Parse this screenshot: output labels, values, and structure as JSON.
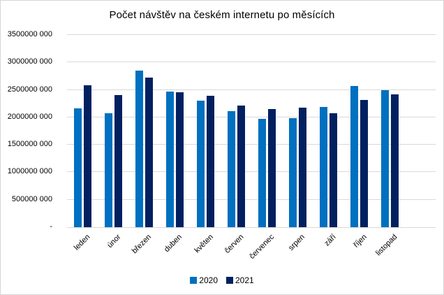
{
  "window": {
    "background": "#ffffff",
    "border_color": "#d6d6d6"
  },
  "chart_data": {
    "type": "bar",
    "title": "Počet návštěv na českém internetu po měsících",
    "categories": [
      "leden",
      "únor",
      "březen",
      "duben",
      "květen",
      "červen",
      "červenec",
      "srpen",
      "září",
      "říjen",
      "listopad"
    ],
    "series": [
      {
        "name": "2020",
        "color": "#0070C0",
        "values": [
          2160000000,
          2080000000,
          2850000000,
          2470000000,
          2300000000,
          2110000000,
          1970000000,
          1980000000,
          2190000000,
          2570000000,
          2500000000
        ]
      },
      {
        "name": "2021",
        "color": "#002060",
        "values": [
          2580000000,
          2410000000,
          2720000000,
          2450000000,
          2390000000,
          2210000000,
          2150000000,
          2170000000,
          2070000000,
          2320000000,
          2420000000
        ]
      }
    ],
    "xlabel": "",
    "ylabel": "",
    "ylim": [
      0,
      3500000000
    ],
    "ytick_step": 500000000,
    "ytick_labels": [
      "-",
      "500000 000",
      "1000000 000",
      "1500000 000",
      "2000000 000",
      "2500000 000",
      "3000000 000",
      "3500000 000"
    ],
    "grid": true,
    "gridline_color": "#d9d9d9",
    "axis_line_color": "#d9d9d9",
    "legend_position": "bottom",
    "x_slot_count": 12
  }
}
